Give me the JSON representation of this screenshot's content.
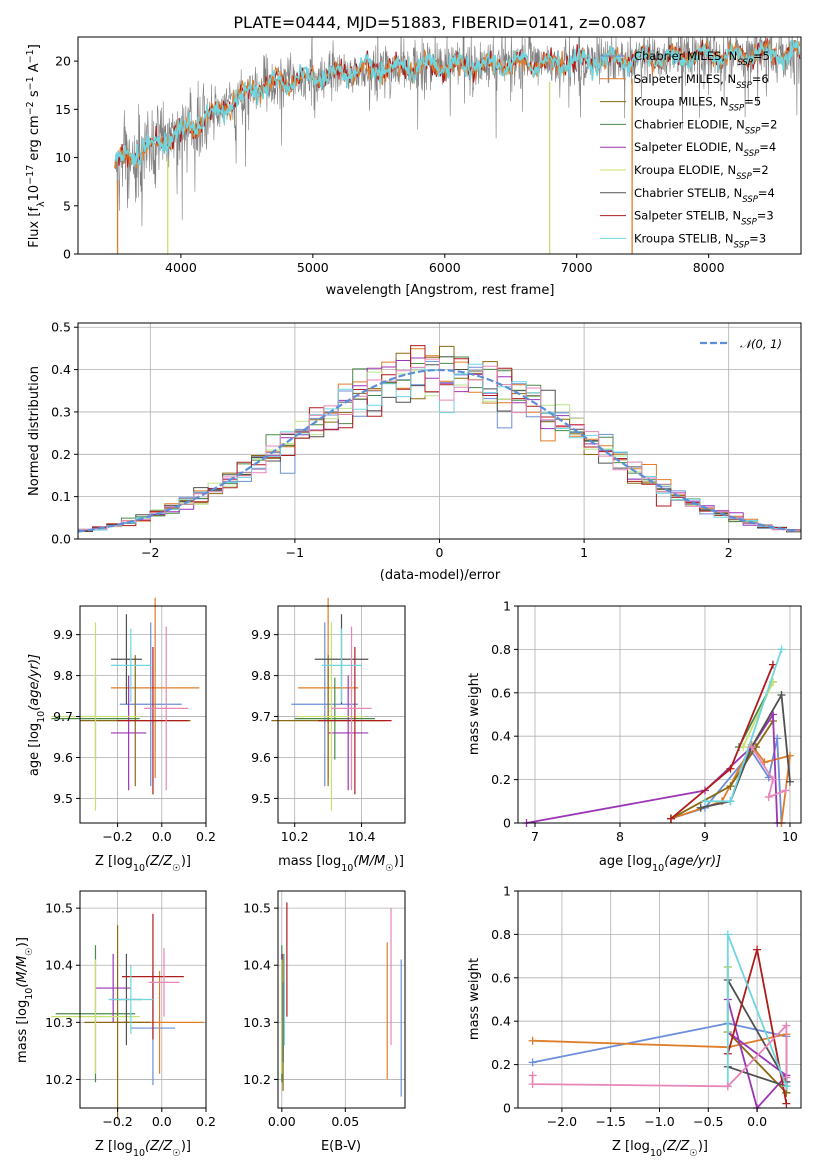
{
  "title": "PLATE=0444, MJD=51883, FIBERID=0141, z=0.087",
  "colors": {
    "Chabrier MILES": "#6b8fd9",
    "Salpeter MILES": "#e07c27",
    "Kroupa MILES": "#8a6a10",
    "Chabrier ELODIE": "#4a8a4a",
    "Salpeter ELODIE": "#9b35b5",
    "Kroupa ELODIE": "#c8e070",
    "Chabrier STELIB": "#505050",
    "Salpeter STELIB": "#b01c1c",
    "Kroupa STELIB": "#6fd6e0",
    "Kroupa ELODIE hist": "#b8e68a",
    "gauss": "#5b8fd9",
    "pink": "#e986b8"
  },
  "chart_data": [
    {
      "id": "spectrum",
      "type": "line",
      "title": "PLATE=0444, MJD=51883, FIBERID=0141, z=0.087",
      "xlabel": "wavelength [Angstrom, rest frame]",
      "ylabel_parts": [
        "Flux [f",
        "λ",
        "10",
        "−17",
        " erg cm",
        "−2",
        " s",
        "−1",
        " A",
        "−1",
        "]"
      ],
      "xlim": [
        3220,
        8700
      ],
      "ylim": [
        0,
        22.5
      ],
      "xticks": [
        4000,
        5000,
        6000,
        7000,
        8000
      ],
      "yticks": [
        0,
        5,
        10,
        15,
        20
      ],
      "x_start": 3500,
      "x_end": 8690,
      "grid": false,
      "legend_position": "right",
      "legend": [
        {
          "name": "Chabrier MILES",
          "nssp": "5",
          "color": "#6b8fd9"
        },
        {
          "name": "Salpeter MILES",
          "nssp": "6",
          "color": "#e07c27"
        },
        {
          "name": "Kroupa MILES",
          "nssp": "5",
          "color": "#8a6a10"
        },
        {
          "name": "Chabrier ELODIE",
          "nssp": "2",
          "color": "#4a8a4a"
        },
        {
          "name": "Salpeter ELODIE",
          "nssp": "4",
          "color": "#9b35b5"
        },
        {
          "name": "Kroupa ELODIE",
          "nssp": "2",
          "color": "#c8e070"
        },
        {
          "name": "Chabrier STELIB",
          "nssp": "4",
          "color": "#505050"
        },
        {
          "name": "Salpeter STELIB",
          "nssp": "3",
          "color": "#b01c1c"
        },
        {
          "name": "Kroupa STELIB",
          "nssp": "3",
          "color": "#6fd6e0"
        }
      ]
    },
    {
      "id": "residuals",
      "type": "histogram",
      "xlabel": "(data-model)/error",
      "ylabel": "Normed distribution",
      "xlim": [
        -2.5,
        2.5
      ],
      "ylim": [
        0,
        0.51
      ],
      "xticks": [
        -2,
        -1,
        0,
        1,
        2
      ],
      "xtick_labels": [
        "−2",
        "−1",
        "0",
        "1",
        "2"
      ],
      "yticks": [
        0.0,
        0.1,
        0.2,
        0.3,
        0.4,
        0.5
      ],
      "ytick_labels": [
        "0.0",
        "0.1",
        "0.2",
        "0.3",
        "0.4",
        "0.5"
      ],
      "bin_width": 0.1,
      "grid": true,
      "legend_position": "top-right",
      "legend_label": "𝒩(0, 1)",
      "gaussian": {
        "mean": 0,
        "sigma": 1
      }
    },
    {
      "id": "age_vs_Z",
      "type": "errorbar",
      "xlabel_parts": [
        "Z [log",
        "10",
        "(Z/Z",
        "☉",
        ")]"
      ],
      "ylabel_parts": [
        "age  [log",
        "10",
        "(age/yr)]"
      ],
      "xlim": [
        -0.37,
        0.2
      ],
      "ylim": [
        9.44,
        9.97
      ],
      "xticks": [
        -0.2,
        0.0,
        0.2
      ],
      "xtick_labels": [
        "−0.2",
        "0.0",
        "0.2"
      ],
      "yticks": [
        9.5,
        9.6,
        9.7,
        9.8,
        9.9
      ],
      "points": [
        {
          "name": "Chabrier MILES",
          "x": -0.05,
          "xerr": 0.14,
          "y": 9.73,
          "yerr": 0.2
        },
        {
          "name": "Salpeter MILES",
          "x": -0.03,
          "xerr": 0.2,
          "y": 9.77,
          "yerr": 0.22
        },
        {
          "name": "Kroupa MILES",
          "x": -0.12,
          "xerr": 0.25,
          "y": 9.69,
          "yerr": 0.16
        },
        {
          "name": "Chabrier ELODIE",
          "x": -0.3,
          "xerr": 0.2,
          "y": 9.695,
          "yerr": 0.1
        },
        {
          "name": "Salpeter ELODIE",
          "x": -0.15,
          "xerr": 0.08,
          "y": 9.66,
          "yerr": 0.14
        },
        {
          "name": "Kroupa ELODIE",
          "x": -0.3,
          "xerr": 0.2,
          "y": 9.7,
          "yerr": 0.23
        },
        {
          "name": "Chabrier STELIB",
          "x": -0.16,
          "xerr": 0.07,
          "y": 9.84,
          "yerr": 0.11
        },
        {
          "name": "Salpeter STELIB",
          "x": -0.04,
          "xerr": 0.16,
          "y": 9.69,
          "yerr": 0.18
        },
        {
          "name": "Kroupa STELIB",
          "x": -0.14,
          "xerr": 0.09,
          "y": 9.825,
          "yerr": 0.09
        },
        {
          "name": "pink",
          "x": 0.02,
          "xerr": 0.1,
          "y": 9.72,
          "yerr": 0.2
        }
      ]
    },
    {
      "id": "age_vs_mass",
      "type": "errorbar",
      "xlabel_parts": [
        "mass [log",
        "10",
        "(M/M",
        "☉",
        ")]"
      ],
      "xlim": [
        10.15,
        10.53
      ],
      "ylim": [
        9.44,
        9.97
      ],
      "xticks": [
        10.2,
        10.4
      ],
      "yticks": [
        9.5,
        9.6,
        9.7,
        9.8,
        9.9
      ],
      "points": [
        {
          "name": "Chabrier MILES",
          "x": 10.29,
          "xerr": 0.1,
          "y": 9.73,
          "yerr": 0.2
        },
        {
          "name": "Salpeter MILES",
          "x": 10.3,
          "xerr": 0.09,
          "y": 9.77,
          "yerr": 0.22
        },
        {
          "name": "Kroupa MILES",
          "x": 10.3,
          "xerr": 0.17,
          "y": 9.69,
          "yerr": 0.16
        },
        {
          "name": "Chabrier ELODIE",
          "x": 10.32,
          "xerr": 0.12,
          "y": 9.695,
          "yerr": 0.1
        },
        {
          "name": "Salpeter ELODIE",
          "x": 10.36,
          "xerr": 0.06,
          "y": 9.66,
          "yerr": 0.14
        },
        {
          "name": "Kroupa ELODIE",
          "x": 10.31,
          "xerr": 0.1,
          "y": 9.7,
          "yerr": 0.23
        },
        {
          "name": "Chabrier STELIB",
          "x": 10.34,
          "xerr": 0.08,
          "y": 9.84,
          "yerr": 0.11
        },
        {
          "name": "Salpeter STELIB",
          "x": 10.38,
          "xerr": 0.11,
          "y": 9.69,
          "yerr": 0.18
        },
        {
          "name": "Kroupa STELIB",
          "x": 10.34,
          "xerr": 0.06,
          "y": 9.825,
          "yerr": 0.09
        },
        {
          "name": "pink",
          "x": 10.37,
          "xerr": 0.06,
          "y": 9.72,
          "yerr": 0.2
        }
      ]
    },
    {
      "id": "weight_vs_age",
      "type": "line",
      "xlabel_parts": [
        "age  [log",
        "10",
        "(age/yr)]"
      ],
      "ylabel": "mass weight",
      "xlim": [
        6.8,
        10.13
      ],
      "ylim": [
        0,
        1.0
      ],
      "xticks": [
        7,
        8,
        9,
        10
      ],
      "yticks": [
        0.0,
        0.2,
        0.4,
        0.6,
        0.8,
        1.0
      ],
      "grid": true,
      "series": [
        {
          "name": "Chabrier MILES",
          "x": [
            8.6,
            9.0,
            9.55,
            9.75,
            9.85,
            9.9
          ],
          "y": [
            0.02,
            0.07,
            0.33,
            0.21,
            0.39,
            0.0
          ]
        },
        {
          "name": "Salpeter MILES",
          "x": [
            8.6,
            9.2,
            9.55,
            9.7,
            10.0,
            9.9
          ],
          "y": [
            0.02,
            0.1,
            0.36,
            0.28,
            0.31,
            0.0
          ]
        },
        {
          "name": "Kroupa MILES",
          "x": [
            8.6,
            9.3,
            9.6,
            9.8
          ],
          "y": [
            0.02,
            0.17,
            0.35,
            0.47
          ]
        },
        {
          "name": "Chabrier ELODIE",
          "x": [
            9.4,
            9.8
          ],
          "y": [
            0.35,
            0.65
          ]
        },
        {
          "name": "Salpeter ELODIE",
          "x": [
            6.9,
            9.0,
            9.55,
            9.8,
            9.85
          ],
          "y": [
            0.0,
            0.15,
            0.35,
            0.5,
            0.0
          ]
        },
        {
          "name": "Kroupa ELODIE",
          "x": [
            9.45,
            9.8
          ],
          "y": [
            0.35,
            0.65
          ]
        },
        {
          "name": "Chabrier STELIB",
          "x": [
            8.95,
            9.3,
            9.55,
            9.9,
            10.0
          ],
          "y": [
            0.07,
            0.1,
            0.35,
            0.59,
            0.19
          ]
        },
        {
          "name": "Salpeter STELIB",
          "x": [
            8.6,
            9.3,
            9.8
          ],
          "y": [
            0.02,
            0.25,
            0.73
          ]
        },
        {
          "name": "Kroupa STELIB",
          "x": [
            9.0,
            9.3,
            9.9
          ],
          "y": [
            0.1,
            0.1,
            0.8
          ]
        },
        {
          "name": "pink",
          "x": [
            9.55,
            9.8,
            9.75,
            9.95
          ],
          "y": [
            0.35,
            0.2,
            0.12,
            0.15
          ]
        }
      ]
    },
    {
      "id": "mass_vs_Z",
      "type": "errorbar",
      "xlabel_parts": [
        "Z [log",
        "10",
        "(Z/Z",
        "☉",
        ")]"
      ],
      "ylabel_parts": [
        "mass [log",
        "10",
        "(M/M",
        "☉",
        ")]"
      ],
      "xlim": [
        -0.37,
        0.2
      ],
      "ylim": [
        10.15,
        10.53
      ],
      "xticks": [
        -0.2,
        0.0,
        0.2
      ],
      "xtick_labels": [
        "−0.2",
        "0.0",
        "0.2"
      ],
      "yticks": [
        10.2,
        10.3,
        10.4,
        10.5
      ],
      "points": [
        {
          "name": "Chabrier MILES",
          "x": -0.04,
          "xerr": 0.1,
          "y": 10.29,
          "yerr": 0.1
        },
        {
          "name": "Salpeter MILES",
          "x": -0.01,
          "xerr": 0.2,
          "y": 10.3,
          "yerr": 0.09
        },
        {
          "name": "Kroupa MILES",
          "x": -0.2,
          "xerr": 0.15,
          "y": 10.3,
          "yerr": 0.17
        },
        {
          "name": "Chabrier ELODIE",
          "x": -0.3,
          "xerr": 0.18,
          "y": 10.315,
          "yerr": 0.12
        },
        {
          "name": "Salpeter ELODIE",
          "x": -0.22,
          "xerr": 0.08,
          "y": 10.36,
          "yerr": 0.06
        },
        {
          "name": "Kroupa ELODIE",
          "x": -0.3,
          "xerr": 0.2,
          "y": 10.31,
          "yerr": 0.1
        },
        {
          "name": "Chabrier STELIB",
          "x": -0.16,
          "xerr": 0.07,
          "y": 10.34,
          "yerr": 0.08
        },
        {
          "name": "Salpeter STELIB",
          "x": -0.04,
          "xerr": 0.14,
          "y": 10.38,
          "yerr": 0.11
        },
        {
          "name": "Kroupa STELIB",
          "x": -0.14,
          "xerr": 0.1,
          "y": 10.34,
          "yerr": 0.06
        },
        {
          "name": "pink",
          "x": 0.01,
          "xerr": 0.07,
          "y": 10.37,
          "yerr": 0.06
        }
      ]
    },
    {
      "id": "mass_vs_ebv",
      "type": "errorbar",
      "xlabel": "E(B-V)",
      "xlim": [
        -0.003,
        0.097
      ],
      "ylim": [
        10.15,
        10.53
      ],
      "xticks": [
        0.0,
        0.05
      ],
      "xtick_labels": [
        "0.00",
        "0.05"
      ],
      "yticks": [
        10.2,
        10.3,
        10.4,
        10.5
      ],
      "points": [
        {
          "name": "Chabrier MILES",
          "x": 0.094,
          "xerr": 0,
          "y": 10.29,
          "yerr": 0.12
        },
        {
          "name": "Salpeter MILES",
          "x": 0.083,
          "xerr": 0,
          "y": 10.32,
          "yerr": 0.12
        },
        {
          "name": "Kroupa MILES",
          "x": 0.001,
          "xerr": 0,
          "y": 10.3,
          "yerr": 0.12
        },
        {
          "name": "Chabrier ELODIE",
          "x": 0.0,
          "xerr": 0,
          "y": 10.315,
          "yerr": 0.12
        },
        {
          "name": "Salpeter ELODIE",
          "x": 0.0,
          "xerr": 0,
          "y": 10.36,
          "yerr": 0.06
        },
        {
          "name": "Kroupa ELODIE",
          "x": 0.0,
          "xerr": 0,
          "y": 10.31,
          "yerr": 0.1
        },
        {
          "name": "Chabrier STELIB",
          "x": 0.001,
          "xerr": 0,
          "y": 10.3,
          "yerr": 0.07
        },
        {
          "name": "Salpeter STELIB",
          "x": 0.004,
          "xerr": 0,
          "y": 10.41,
          "yerr": 0.1
        },
        {
          "name": "Kroupa STELIB",
          "x": 0.002,
          "xerr": 0,
          "y": 10.34,
          "yerr": 0.08
        },
        {
          "name": "pink",
          "x": 0.086,
          "xerr": 0,
          "y": 10.38,
          "yerr": 0.12
        }
      ]
    },
    {
      "id": "weight_vs_Z",
      "type": "line",
      "xlabel_parts": [
        "Z [log",
        "10",
        "(Z/Z",
        "☉",
        ")]"
      ],
      "ylabel": "mass weight",
      "xlim": [
        -2.45,
        0.45
      ],
      "ylim": [
        0,
        1.0
      ],
      "xticks": [
        -2.0,
        -1.5,
        -1.0,
        -0.5,
        0.0
      ],
      "xtick_labels": [
        "−2.0",
        "−1.5",
        "−1.0",
        "−0.5",
        "0.0"
      ],
      "yticks": [
        0.0,
        0.2,
        0.4,
        0.6,
        0.8,
        1.0
      ],
      "grid": true,
      "series": [
        {
          "name": "Chabrier MILES",
          "x": [
            -2.3,
            -0.3,
            0.3,
            0.3
          ],
          "y": [
            0.21,
            0.39,
            0.33,
            0.07
          ]
        },
        {
          "name": "Salpeter MILES",
          "x": [
            -2.3,
            -0.3,
            0.3,
            0.3
          ],
          "y": [
            0.31,
            0.28,
            0.34,
            0.07
          ]
        },
        {
          "name": "Kroupa MILES",
          "x": [
            -0.3,
            0.3
          ],
          "y": [
            0.35,
            0.07
          ]
        },
        {
          "name": "Chabrier ELODIE",
          "x": [
            -0.3,
            -0.3
          ],
          "y": [
            0.35,
            0.65
          ]
        },
        {
          "name": "Salpeter ELODIE",
          "x": [
            -0.3,
            0.0,
            0.3,
            -0.3
          ],
          "y": [
            0.5,
            0.0,
            0.15,
            0.35
          ]
        },
        {
          "name": "Kroupa ELODIE",
          "x": [
            -0.3,
            -0.3
          ],
          "y": [
            0.35,
            0.65
          ]
        },
        {
          "name": "Chabrier STELIB",
          "x": [
            -0.3,
            0.3,
            0.3,
            -0.3
          ],
          "y": [
            0.19,
            0.1,
            0.12,
            0.59
          ]
        },
        {
          "name": "Salpeter STELIB",
          "x": [
            -0.3,
            0.0,
            0.3
          ],
          "y": [
            0.25,
            0.73,
            0.02
          ]
        },
        {
          "name": "Kroupa STELIB",
          "x": [
            -0.3,
            -0.3,
            0.3
          ],
          "y": [
            0.1,
            0.8,
            0.1
          ]
        },
        {
          "name": "pink",
          "x": [
            -2.3,
            -2.3,
            -0.3,
            0.3,
            0.3
          ],
          "y": [
            0.15,
            0.11,
            0.1,
            0.38,
            0.14
          ]
        }
      ]
    }
  ]
}
